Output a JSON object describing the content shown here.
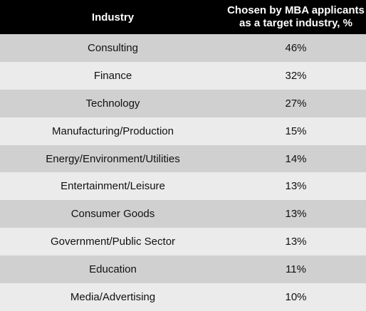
{
  "chart_data": {
    "type": "table",
    "columns": [
      "Industry",
      "Chosen by MBA applicants as a target industry, %"
    ],
    "header": {
      "col1": "Industry",
      "col2_line1": "Chosen by MBA applicants",
      "col2_line2": "as a target industry, %"
    },
    "rows": [
      {
        "industry": "Consulting",
        "value": "46%"
      },
      {
        "industry": "Finance",
        "value": "32%"
      },
      {
        "industry": "Technology",
        "value": "27%"
      },
      {
        "industry": "Manufacturing/Production",
        "value": "15%"
      },
      {
        "industry": "Energy/Environment/Utilities",
        "value": "14%"
      },
      {
        "industry": "Entertainment/Leisure",
        "value": "13%"
      },
      {
        "industry": "Consumer Goods",
        "value": "13%"
      },
      {
        "industry": "Government/Public  Sector",
        "value": "13%"
      },
      {
        "industry": "Education",
        "value": "11%"
      },
      {
        "industry": "Media/Advertising",
        "value": "10%"
      }
    ]
  },
  "colors": {
    "header_bg": "#000000",
    "header_text": "#ffffff",
    "row_dark": "#d0d0d0",
    "row_light": "#ebebeb"
  }
}
